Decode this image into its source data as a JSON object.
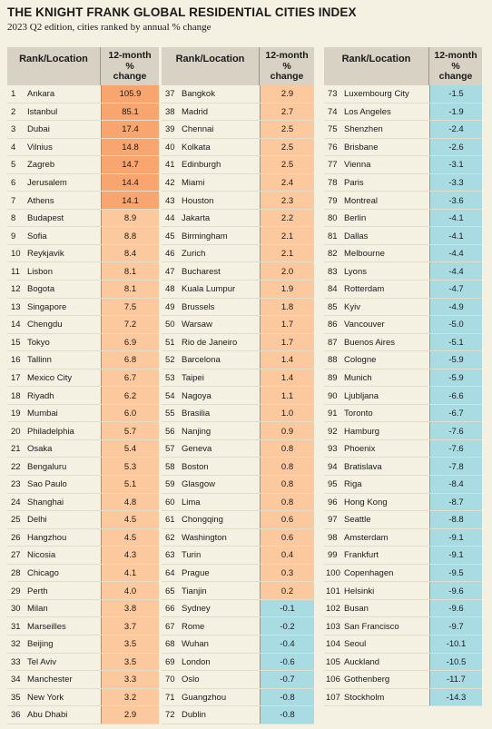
{
  "title": "THE KNIGHT FRANK GLOBAL RESIDENTIAL CITIES INDEX",
  "subtitle": "2023 Q2 edition, cities ranked by annual % change",
  "headers": {
    "location": "Rank/Location",
    "change_line1": "12-month",
    "change_line2": "%",
    "change_line3": "change"
  },
  "colors": {
    "strong_orange": "#f8a56f",
    "light_orange": "#fcc89e",
    "negative_blue": "#a9dbe3",
    "header_bg": "#d7d2c3",
    "page_bg": "#f5f1e2"
  },
  "rows": [
    {
      "rank": "1",
      "city": "Ankara",
      "change": "105.9"
    },
    {
      "rank": "2",
      "city": "Istanbul",
      "change": "85.1"
    },
    {
      "rank": "3",
      "city": "Dubai",
      "change": "17.4"
    },
    {
      "rank": "4",
      "city": "Vilnius",
      "change": "14.8"
    },
    {
      "rank": "5",
      "city": "Zagreb",
      "change": "14.7"
    },
    {
      "rank": "6",
      "city": "Jerusalem",
      "change": "14.4"
    },
    {
      "rank": "7",
      "city": "Athens",
      "change": "14.1"
    },
    {
      "rank": "8",
      "city": "Budapest",
      "change": "8.9"
    },
    {
      "rank": "9",
      "city": "Sofia",
      "change": "8.8"
    },
    {
      "rank": "10",
      "city": "Reykjavik",
      "change": "8.4"
    },
    {
      "rank": "11",
      "city": "Lisbon",
      "change": "8.1"
    },
    {
      "rank": "12",
      "city": "Bogota",
      "change": "8.1"
    },
    {
      "rank": "13",
      "city": "Singapore",
      "change": "7.5"
    },
    {
      "rank": "14",
      "city": "Chengdu",
      "change": "7.2"
    },
    {
      "rank": "15",
      "city": "Tokyo",
      "change": "6.9"
    },
    {
      "rank": "16",
      "city": "Tallinn",
      "change": "6.8"
    },
    {
      "rank": "17",
      "city": "Mexico City",
      "change": "6.7"
    },
    {
      "rank": "18",
      "city": "Riyadh",
      "change": "6.2"
    },
    {
      "rank": "19",
      "city": "Mumbai",
      "change": "6.0"
    },
    {
      "rank": "20",
      "city": "Philadelphia",
      "change": "5.7"
    },
    {
      "rank": "21",
      "city": "Osaka",
      "change": "5.4"
    },
    {
      "rank": "22",
      "city": "Bengaluru",
      "change": "5.3"
    },
    {
      "rank": "23",
      "city": "Sao Paulo",
      "change": "5.1"
    },
    {
      "rank": "24",
      "city": "Shanghai",
      "change": "4.8"
    },
    {
      "rank": "25",
      "city": "Delhi",
      "change": "4.5"
    },
    {
      "rank": "26",
      "city": "Hangzhou",
      "change": "4.5"
    },
    {
      "rank": "27",
      "city": "Nicosia",
      "change": "4.3"
    },
    {
      "rank": "28",
      "city": "Chicago",
      "change": "4.1"
    },
    {
      "rank": "29",
      "city": "Perth",
      "change": "4.0"
    },
    {
      "rank": "30",
      "city": "Milan",
      "change": "3.8"
    },
    {
      "rank": "31",
      "city": "Marseilles",
      "change": "3.7"
    },
    {
      "rank": "32",
      "city": "Beijing",
      "change": "3.5"
    },
    {
      "rank": "33",
      "city": "Tel Aviv",
      "change": "3.5"
    },
    {
      "rank": "34",
      "city": "Manchester",
      "change": "3.3"
    },
    {
      "rank": "35",
      "city": "New York",
      "change": "3.2"
    },
    {
      "rank": "36",
      "city": "Abu Dhabi",
      "change": "2.9"
    },
    {
      "rank": "37",
      "city": "Bangkok",
      "change": "2.9"
    },
    {
      "rank": "38",
      "city": "Madrid",
      "change": "2.7"
    },
    {
      "rank": "39",
      "city": "Chennai",
      "change": "2.5"
    },
    {
      "rank": "40",
      "city": "Kolkata",
      "change": "2.5"
    },
    {
      "rank": "41",
      "city": "Edinburgh",
      "change": "2.5"
    },
    {
      "rank": "42",
      "city": "Miami",
      "change": "2.4"
    },
    {
      "rank": "43",
      "city": "Houston",
      "change": "2.3"
    },
    {
      "rank": "44",
      "city": "Jakarta",
      "change": "2.2"
    },
    {
      "rank": "45",
      "city": "Birmingham",
      "change": "2.1"
    },
    {
      "rank": "46",
      "city": "Zurich",
      "change": "2.1"
    },
    {
      "rank": "47",
      "city": "Bucharest",
      "change": "2.0"
    },
    {
      "rank": "48",
      "city": "Kuala Lumpur",
      "change": "1.9"
    },
    {
      "rank": "49",
      "city": "Brussels",
      "change": "1.8"
    },
    {
      "rank": "50",
      "city": "Warsaw",
      "change": "1.7"
    },
    {
      "rank": "51",
      "city": "Rio de Janeiro",
      "change": "1.7"
    },
    {
      "rank": "52",
      "city": "Barcelona",
      "change": "1.4"
    },
    {
      "rank": "53",
      "city": "Taipei",
      "change": "1.4"
    },
    {
      "rank": "54",
      "city": "Nagoya",
      "change": "1.1"
    },
    {
      "rank": "55",
      "city": "Brasilia",
      "change": "1.0"
    },
    {
      "rank": "56",
      "city": "Nanjing",
      "change": "0.9"
    },
    {
      "rank": "57",
      "city": "Geneva",
      "change": "0.8"
    },
    {
      "rank": "58",
      "city": "Boston",
      "change": "0.8"
    },
    {
      "rank": "59",
      "city": "Glasgow",
      "change": "0.8"
    },
    {
      "rank": "60",
      "city": "Lima",
      "change": "0.8"
    },
    {
      "rank": "61",
      "city": "Chongqing",
      "change": "0.6"
    },
    {
      "rank": "62",
      "city": "Washington",
      "change": "0.6"
    },
    {
      "rank": "63",
      "city": "Turin",
      "change": "0.4"
    },
    {
      "rank": "64",
      "city": "Prague",
      "change": "0.3"
    },
    {
      "rank": "65",
      "city": "Tianjin",
      "change": "0.2"
    },
    {
      "rank": "66",
      "city": "Sydney",
      "change": "-0.1"
    },
    {
      "rank": "67",
      "city": "Rome",
      "change": "-0.2"
    },
    {
      "rank": "68",
      "city": "Wuhan",
      "change": "-0.4"
    },
    {
      "rank": "69",
      "city": "London",
      "change": "-0.6"
    },
    {
      "rank": "70",
      "city": "Oslo",
      "change": "-0.7"
    },
    {
      "rank": "71",
      "city": "Guangzhou",
      "change": "-0.8"
    },
    {
      "rank": "72",
      "city": "Dublin",
      "change": "-0.8"
    },
    {
      "rank": "73",
      "city": "Luxembourg City",
      "change": "-1.5"
    },
    {
      "rank": "74",
      "city": "Los Angeles",
      "change": "-1.9"
    },
    {
      "rank": "75",
      "city": "Shenzhen",
      "change": "-2.4"
    },
    {
      "rank": "76",
      "city": "Brisbane",
      "change": "-2.6"
    },
    {
      "rank": "77",
      "city": "Vienna",
      "change": "-3.1"
    },
    {
      "rank": "78",
      "city": "Paris",
      "change": "-3.3"
    },
    {
      "rank": "79",
      "city": "Montreal",
      "change": "-3.6"
    },
    {
      "rank": "80",
      "city": "Berlin",
      "change": "-4.1"
    },
    {
      "rank": "81",
      "city": "Dallas",
      "change": "-4.1"
    },
    {
      "rank": "82",
      "city": "Melbourne",
      "change": "-4.4"
    },
    {
      "rank": "83",
      "city": "Lyons",
      "change": "-4.4"
    },
    {
      "rank": "84",
      "city": "Rotterdam",
      "change": "-4.7"
    },
    {
      "rank": "85",
      "city": "Kyiv",
      "change": "-4.9"
    },
    {
      "rank": "86",
      "city": "Vancouver",
      "change": "-5.0"
    },
    {
      "rank": "87",
      "city": "Buenos Aires",
      "change": "-5.1"
    },
    {
      "rank": "88",
      "city": "Cologne",
      "change": "-5.9"
    },
    {
      "rank": "89",
      "city": "Munich",
      "change": "-5.9"
    },
    {
      "rank": "90",
      "city": "Ljubljana",
      "change": "-6.6"
    },
    {
      "rank": "91",
      "city": "Toronto",
      "change": "-6.7"
    },
    {
      "rank": "92",
      "city": "Hamburg",
      "change": "-7.6"
    },
    {
      "rank": "93",
      "city": "Phoenix",
      "change": "-7.6"
    },
    {
      "rank": "94",
      "city": "Bratislava",
      "change": "-7.8"
    },
    {
      "rank": "95",
      "city": "Riga",
      "change": "-8.4"
    },
    {
      "rank": "96",
      "city": "Hong Kong",
      "change": "-8.7"
    },
    {
      "rank": "97",
      "city": "Seattle",
      "change": "-8.8"
    },
    {
      "rank": "98",
      "city": "Amsterdam",
      "change": "-9.1"
    },
    {
      "rank": "99",
      "city": "Frankfurt",
      "change": "-9.1"
    },
    {
      "rank": "100",
      "city": "Copenhagen",
      "change": "-9.5"
    },
    {
      "rank": "101",
      "city": "Helsinki",
      "change": "-9.6"
    },
    {
      "rank": "102",
      "city": "Busan",
      "change": "-9.6"
    },
    {
      "rank": "103",
      "city": "San Francisco",
      "change": "-9.7"
    },
    {
      "rank": "104",
      "city": "Seoul",
      "change": "-10.1"
    },
    {
      "rank": "105",
      "city": "Auckland",
      "change": "-10.5"
    },
    {
      "rank": "106",
      "city": "Gothenberg",
      "change": "-11.7"
    },
    {
      "rank": "107",
      "city": "Stockholm",
      "change": "-14.3"
    }
  ]
}
